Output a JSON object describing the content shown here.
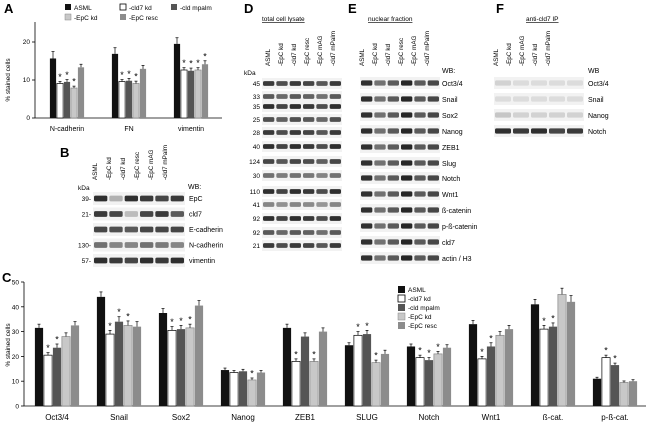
{
  "panels": {
    "A": {
      "letter": "A",
      "ylabel": "% stained cells",
      "legend": [
        "ASML",
        "-cld7 kd",
        "-cld mpalm",
        "-EpC kd",
        "-EpC resc"
      ],
      "yticks": [
        "0",
        "10",
        "20"
      ],
      "chart": {
        "type": "bar",
        "categories": [
          "N-cadherin",
          "FN",
          "vimentin"
        ],
        "ylim": [
          0,
          25
        ],
        "series": [
          {
            "name": "ASML",
            "values": [
              15.5,
              16.7,
              19.3
            ],
            "errors": [
              1.8,
              1.6,
              1.6
            ]
          },
          {
            "name": "-EpC kd",
            "values": [
              9.0,
              9.5,
              12.5
            ],
            "errors": [
              0.5,
              0.5,
              0.6
            ]
          },
          {
            "name": "-cld7 kd",
            "values": [
              9.4,
              9.7,
              12.3
            ],
            "errors": [
              0.6,
              0.6,
              0.7
            ]
          },
          {
            "name": "-cld mpalm",
            "values": [
              7.8,
              9.0,
              12.5
            ],
            "errors": [
              0.5,
              0.6,
              0.6
            ]
          },
          {
            "name": "-EpC resc",
            "values": [
              13.2,
              12.8,
              14.0
            ],
            "errors": [
              0.8,
              0.9,
              0.9
            ]
          }
        ],
        "stars": [
          [
            false,
            true,
            true,
            true,
            false
          ],
          [
            false,
            true,
            true,
            true,
            false
          ],
          [
            false,
            true,
            true,
            true,
            true
          ]
        ]
      }
    },
    "B": {
      "letter": "B",
      "lanes": [
        "ASML",
        "-EpC kd",
        "-cld7 kd",
        "-EpC resc",
        "-EpC mAG",
        "-cld7 mPalm"
      ],
      "kda_label": "kDa",
      "wb_label": "WB:",
      "rows": [
        {
          "marker": "39-",
          "label": "EpC"
        },
        {
          "marker": "21-",
          "label": "cld7"
        },
        {
          "marker": "",
          "label": "E-cadherin"
        },
        {
          "marker": "130-",
          "label": "N-cadherin"
        },
        {
          "marker": "57-",
          "label": "vimentin"
        }
      ]
    },
    "C": {
      "letter": "C",
      "ylabel": "% stained cells",
      "yticks": [
        "0",
        "10",
        "20",
        "30",
        "40",
        "50"
      ],
      "legend": [
        "ASML",
        "-cld7 kd",
        "-cld mpalm",
        "-EpC kd",
        "-EpC resc"
      ],
      "chart": {
        "type": "bar",
        "categories": [
          "Oct3/4",
          "Snail",
          "Sox2",
          "Nanog",
          "ZEB1",
          "SLUG",
          "Notch",
          "Wnt1",
          "ß-cat.",
          "p-ß-cat."
        ],
        "ylim": [
          0,
          50
        ],
        "series": [
          {
            "name": "ASML",
            "values": [
              31.5,
              44.0,
              37.5,
              14.5,
              31.5,
              24.5,
              24.0,
              33.0,
              41.0,
              11.0
            ],
            "errors": [
              1.5,
              2.0,
              1.8,
              0.8,
              1.5,
              1.0,
              1.0,
              1.5,
              2.0,
              0.6
            ]
          },
          {
            "name": "-cld7 kd",
            "values": [
              20.5,
              29.0,
              30.5,
              13.5,
              18.0,
              28.5,
              19.5,
              19.0,
              31.0,
              19.5
            ],
            "errors": [
              1.0,
              1.5,
              1.5,
              0.8,
              1.0,
              1.5,
              1.0,
              1.0,
              1.5,
              1.0
            ]
          },
          {
            "name": "-cld mpalm",
            "values": [
              23.5,
              34.0,
              31.0,
              14.0,
              28.0,
              29.0,
              18.5,
              24.0,
              32.0,
              16.5
            ],
            "errors": [
              1.5,
              2.0,
              1.5,
              0.8,
              1.5,
              1.5,
              1.0,
              1.5,
              1.5,
              0.8
            ]
          },
          {
            "name": "-EpC kd",
            "values": [
              28.0,
              32.5,
              31.5,
              10.5,
              18.0,
              17.5,
              21.0,
              28.5,
              45.0,
              9.5
            ],
            "errors": [
              1.5,
              1.8,
              1.5,
              0.8,
              1.0,
              1.0,
              1.0,
              1.5,
              2.5,
              0.6
            ]
          },
          {
            "name": "-EpC resc",
            "values": [
              32.5,
              32.0,
              40.5,
              13.5,
              30.0,
              21.0,
              23.5,
              31.0,
              42.0,
              10.0
            ],
            "errors": [
              1.5,
              2.0,
              2.0,
              0.8,
              1.5,
              1.5,
              1.2,
              1.5,
              2.5,
              0.6
            ]
          }
        ],
        "stars": [
          [
            false,
            true,
            true,
            false,
            false
          ],
          [
            false,
            true,
            true,
            true,
            false
          ],
          [
            false,
            true,
            true,
            true,
            false
          ],
          [
            false,
            false,
            false,
            true,
            false
          ],
          [
            false,
            true,
            false,
            true,
            false
          ],
          [
            false,
            true,
            true,
            true,
            false
          ],
          [
            false,
            true,
            true,
            true,
            false
          ],
          [
            false,
            true,
            true,
            false,
            false
          ],
          [
            false,
            true,
            true,
            false,
            false
          ],
          [
            false,
            true,
            true,
            false,
            false
          ]
        ]
      }
    },
    "D": {
      "letter": "D",
      "title": "total cell lysate",
      "kda_label": "kDa",
      "lanes": [
        "ASML",
        "-EpC kd",
        "-cld7 kd",
        "-EpC resc",
        "-EpC mAG",
        "-cld7 mPalm"
      ],
      "markers": [
        "45",
        "33",
        "35",
        "25",
        "28",
        "40",
        "124",
        "30",
        "110",
        "41",
        "92",
        "92",
        "21"
      ]
    },
    "E": {
      "letter": "E",
      "title": "nuclear fraction",
      "wb_label": "WB:",
      "lanes": [
        "ASML",
        "-EpC kd",
        "-cld7 kd",
        "-EpC resc",
        "-EpC mAG",
        "-cld7 mPalm"
      ],
      "rows": [
        "Oct3/4",
        "Snail",
        "Sox2",
        "Nanog",
        "ZEB1",
        "Slug",
        "Notch",
        "Wnt1",
        "ß-catenin",
        "p-ß-catenin",
        "cld7",
        "actin / H3"
      ]
    },
    "F": {
      "letter": "F",
      "title": "anti-cld7 IP",
      "wb_label": "WB",
      "lanes": [
        "ASML",
        "-EpC kd",
        "-EpC mAG",
        "-cld7 kd",
        "-cld7 mPalm"
      ],
      "rows": [
        "Oct3/4",
        "Snail",
        "Nanog",
        "Notch"
      ]
    }
  },
  "colors": {
    "black": "#111111",
    "white": "#ffffff",
    "dark_gray": "#555555",
    "light_gray": "#c8c8c8",
    "mid_gray": "#8c8c8c",
    "blot_bg": "#f2f2f2",
    "band": "#1a1a1a"
  }
}
